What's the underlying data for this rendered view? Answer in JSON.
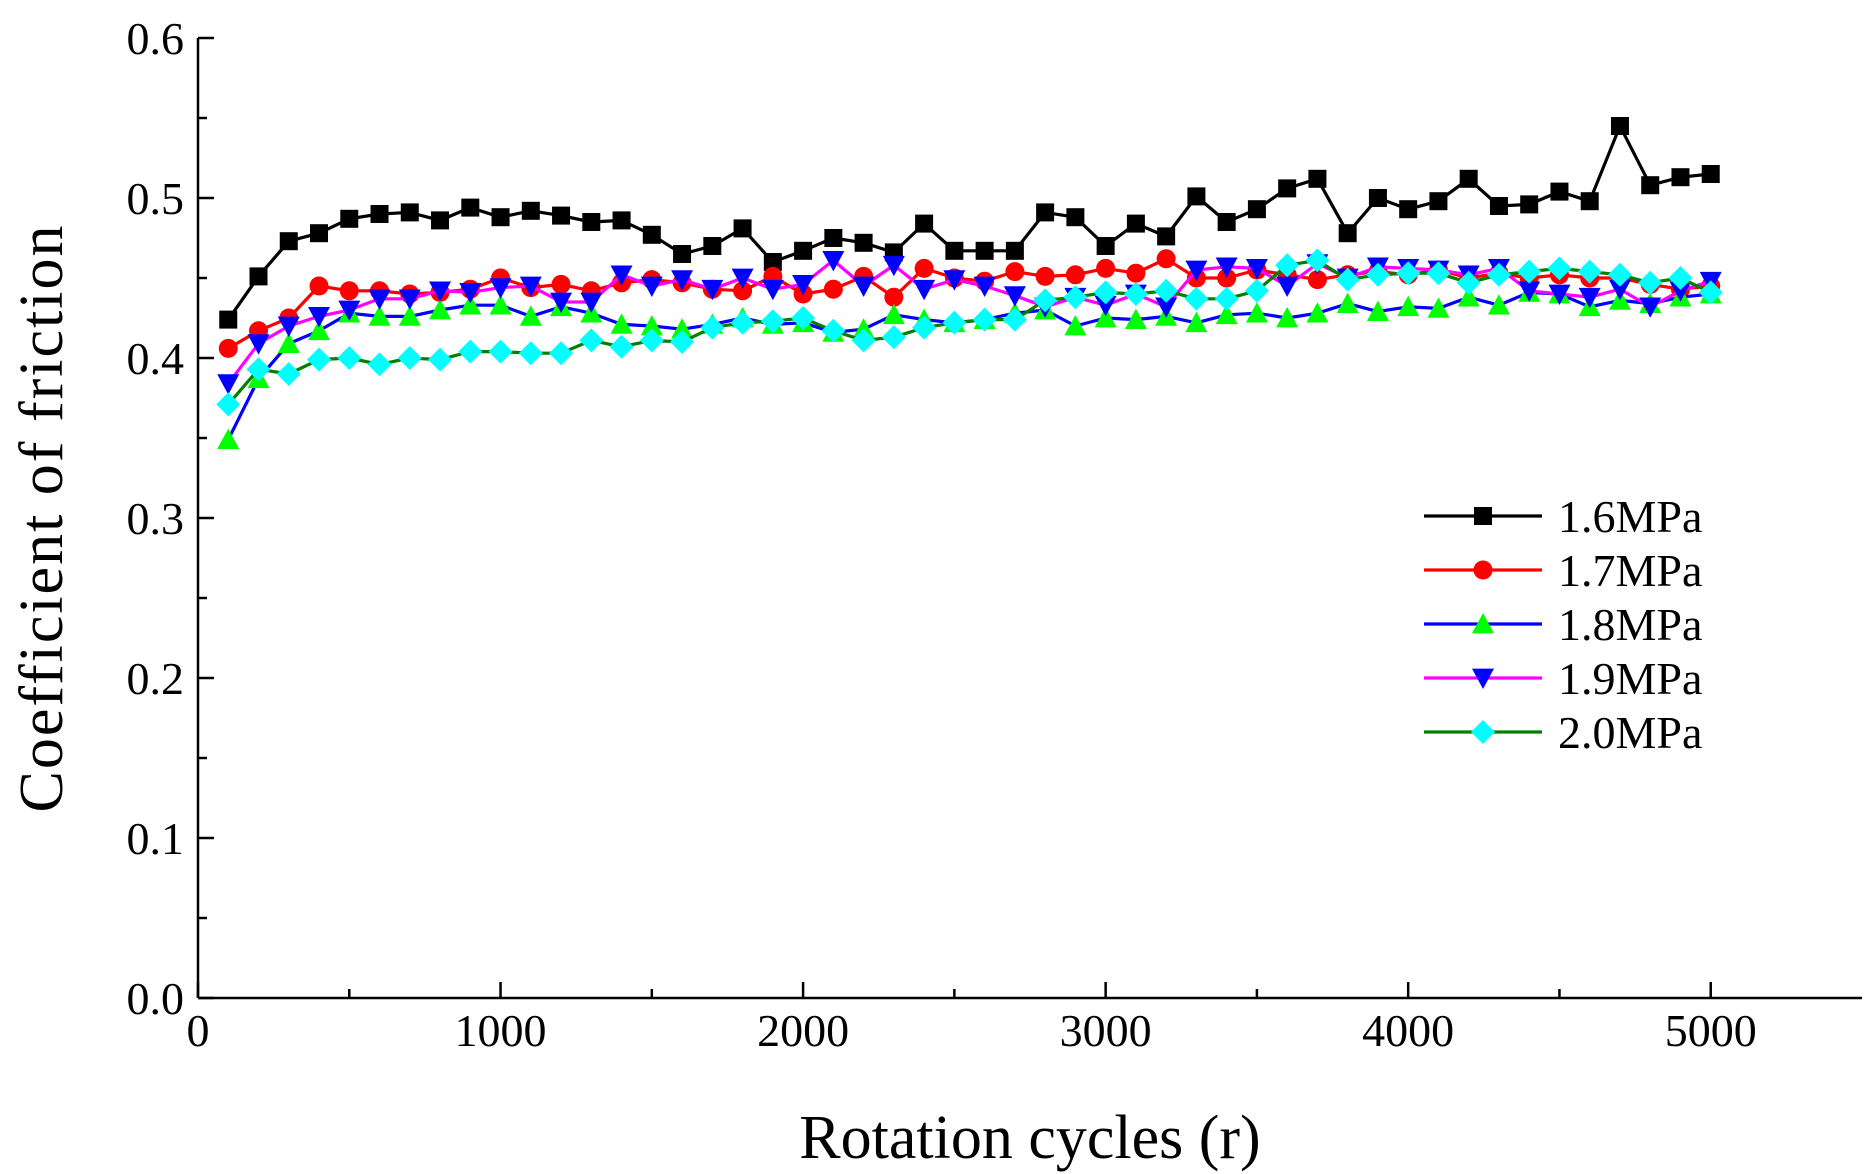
{
  "chart_data": {
    "type": "line",
    "title": "",
    "xlabel": "Rotation cycles (r)",
    "ylabel": "Coefficient of friction",
    "xlim": [
      0,
      5500
    ],
    "ylim": [
      0.0,
      0.6
    ],
    "x_ticks": [
      0,
      1000,
      2000,
      3000,
      4000,
      5000
    ],
    "x_tick_labels": [
      "0",
      "1000",
      "2000",
      "3000",
      "4000",
      "5000"
    ],
    "y_ticks": [
      0.0,
      0.1,
      0.2,
      0.3,
      0.4,
      0.5,
      0.6
    ],
    "y_tick_labels": [
      "0.0",
      "0.1",
      "0.2",
      "0.3",
      "0.4",
      "0.5",
      "0.6"
    ],
    "grid": false,
    "legend_position": "right",
    "x": [
      100,
      200,
      300,
      400,
      500,
      600,
      700,
      800,
      900,
      1000,
      1100,
      1200,
      1300,
      1400,
      1500,
      1600,
      1700,
      1800,
      1900,
      2000,
      2100,
      2200,
      2300,
      2400,
      2500,
      2600,
      2700,
      2800,
      2900,
      3000,
      3100,
      3200,
      3300,
      3400,
      3500,
      3600,
      3700,
      3800,
      3900,
      4000,
      4100,
      4200,
      4300,
      4400,
      4500,
      4600,
      4700,
      4800,
      4900,
      5000
    ],
    "series": [
      {
        "name": "1.6MPa",
        "line_color": "#000000",
        "marker_color": "#000000",
        "marker": "square",
        "values": [
          0.424,
          0.451,
          0.473,
          0.478,
          0.487,
          0.49,
          0.491,
          0.486,
          0.494,
          0.488,
          0.492,
          0.489,
          0.485,
          0.486,
          0.477,
          0.465,
          0.47,
          0.481,
          0.46,
          0.467,
          0.475,
          0.472,
          0.466,
          0.484,
          0.467,
          0.467,
          0.467,
          0.491,
          0.488,
          0.47,
          0.484,
          0.476,
          0.501,
          0.485,
          0.493,
          0.506,
          0.512,
          0.478,
          0.5,
          0.493,
          0.498,
          0.512,
          0.495,
          0.496,
          0.504,
          0.498,
          0.545,
          0.508,
          0.513,
          0.515
        ]
      },
      {
        "name": "1.7MPa",
        "line_color": "#ff0000",
        "marker_color": "#ff0000",
        "marker": "circle",
        "values": [
          0.406,
          0.417,
          0.425,
          0.445,
          0.442,
          0.442,
          0.44,
          0.441,
          0.443,
          0.45,
          0.444,
          0.446,
          0.442,
          0.447,
          0.449,
          0.447,
          0.443,
          0.442,
          0.451,
          0.44,
          0.443,
          0.451,
          0.438,
          0.456,
          0.45,
          0.448,
          0.454,
          0.451,
          0.452,
          0.456,
          0.453,
          0.462,
          0.45,
          0.45,
          0.455,
          0.452,
          0.449,
          0.452,
          0.454,
          0.452,
          0.455,
          0.45,
          0.453,
          0.45,
          0.452,
          0.45,
          0.45,
          0.446,
          0.443,
          0.445
        ]
      },
      {
        "name": "1.8MPa",
        "line_color": "#0000ff",
        "marker_color": "#00ff00",
        "marker": "triangle-up",
        "values": [
          0.349,
          0.387,
          0.409,
          0.417,
          0.428,
          0.426,
          0.426,
          0.43,
          0.433,
          0.433,
          0.426,
          0.432,
          0.428,
          0.421,
          0.42,
          0.418,
          0.421,
          0.425,
          0.421,
          0.422,
          0.416,
          0.418,
          0.427,
          0.424,
          0.422,
          0.424,
          0.428,
          0.43,
          0.42,
          0.425,
          0.424,
          0.426,
          0.422,
          0.427,
          0.428,
          0.425,
          0.428,
          0.434,
          0.429,
          0.432,
          0.431,
          0.438,
          0.433,
          0.441,
          0.44,
          0.432,
          0.436,
          0.434,
          0.438,
          0.44
        ]
      },
      {
        "name": "1.9MPa",
        "line_color": "#ff00ff",
        "marker_color": "#0000ff",
        "marker": "triangle-down",
        "values": [
          0.384,
          0.409,
          0.42,
          0.426,
          0.43,
          0.437,
          0.437,
          0.442,
          0.441,
          0.444,
          0.445,
          0.435,
          0.435,
          0.452,
          0.445,
          0.449,
          0.443,
          0.45,
          0.443,
          0.446,
          0.461,
          0.445,
          0.458,
          0.443,
          0.449,
          0.445,
          0.439,
          0.432,
          0.438,
          0.433,
          0.44,
          0.432,
          0.455,
          0.457,
          0.456,
          0.445,
          0.459,
          0.45,
          0.457,
          0.456,
          0.455,
          0.452,
          0.456,
          0.442,
          0.44,
          0.438,
          0.443,
          0.432,
          0.442,
          0.448
        ]
      },
      {
        "name": "2.0MPa",
        "line_color": "#008000",
        "marker_color": "#00ffff",
        "marker": "diamond",
        "values": [
          0.371,
          0.393,
          0.39,
          0.399,
          0.4,
          0.396,
          0.4,
          0.399,
          0.404,
          0.404,
          0.403,
          0.403,
          0.411,
          0.407,
          0.411,
          0.41,
          0.419,
          0.422,
          0.423,
          0.425,
          0.417,
          0.411,
          0.413,
          0.419,
          0.422,
          0.424,
          0.424,
          0.436,
          0.438,
          0.441,
          0.44,
          0.442,
          0.437,
          0.437,
          0.442,
          0.458,
          0.461,
          0.449,
          0.452,
          0.453,
          0.453,
          0.447,
          0.452,
          0.454,
          0.456,
          0.454,
          0.452,
          0.447,
          0.45,
          0.441
        ]
      }
    ]
  }
}
